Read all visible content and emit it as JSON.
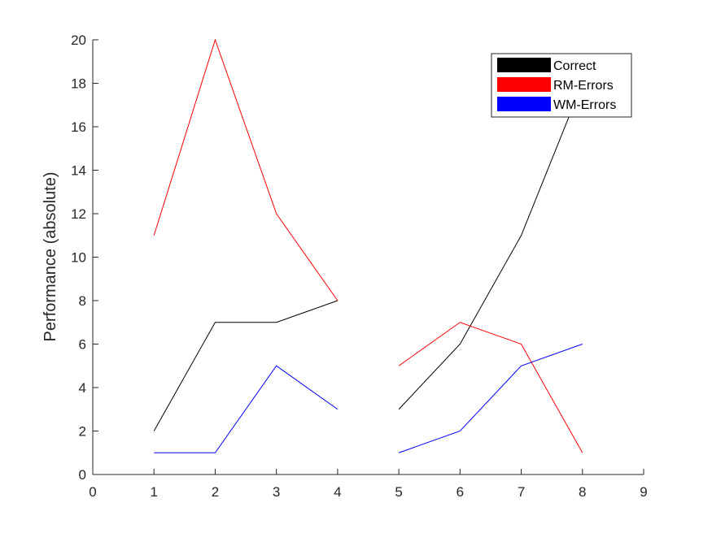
{
  "chart_data": {
    "type": "line",
    "title": "",
    "xlabel": "",
    "ylabel": "Performance (absolute)",
    "xlim": [
      0,
      9
    ],
    "ylim": [
      0,
      20
    ],
    "xticks": [
      "0",
      "1",
      "2",
      "3",
      "4",
      "5",
      "6",
      "7",
      "8",
      "9"
    ],
    "yticks": [
      "0",
      "2",
      "4",
      "6",
      "8",
      "10",
      "12",
      "14",
      "16",
      "18",
      "20"
    ],
    "grid": false,
    "legend_position": "top-right",
    "series": [
      {
        "name": "Correct",
        "color": "#000000",
        "segments": [
          {
            "x": [
              1,
              2,
              3,
              4
            ],
            "y": [
              2,
              7,
              7,
              8
            ]
          },
          {
            "x": [
              5,
              6,
              7,
              8
            ],
            "y": [
              3,
              6,
              11,
              18
            ]
          }
        ]
      },
      {
        "name": "RM-Errors",
        "color": "#ff0000",
        "segments": [
          {
            "x": [
              1,
              2,
              3,
              4
            ],
            "y": [
              11,
              20,
              12,
              8
            ]
          },
          {
            "x": [
              5,
              6,
              7,
              8
            ],
            "y": [
              5,
              7,
              6,
              1
            ]
          }
        ]
      },
      {
        "name": "WM-Errors",
        "color": "#0000ff",
        "segments": [
          {
            "x": [
              1,
              2,
              3,
              4
            ],
            "y": [
              1,
              1,
              5,
              3
            ]
          },
          {
            "x": [
              5,
              6,
              7,
              8
            ],
            "y": [
              1,
              2,
              5,
              6
            ]
          }
        ]
      }
    ]
  }
}
